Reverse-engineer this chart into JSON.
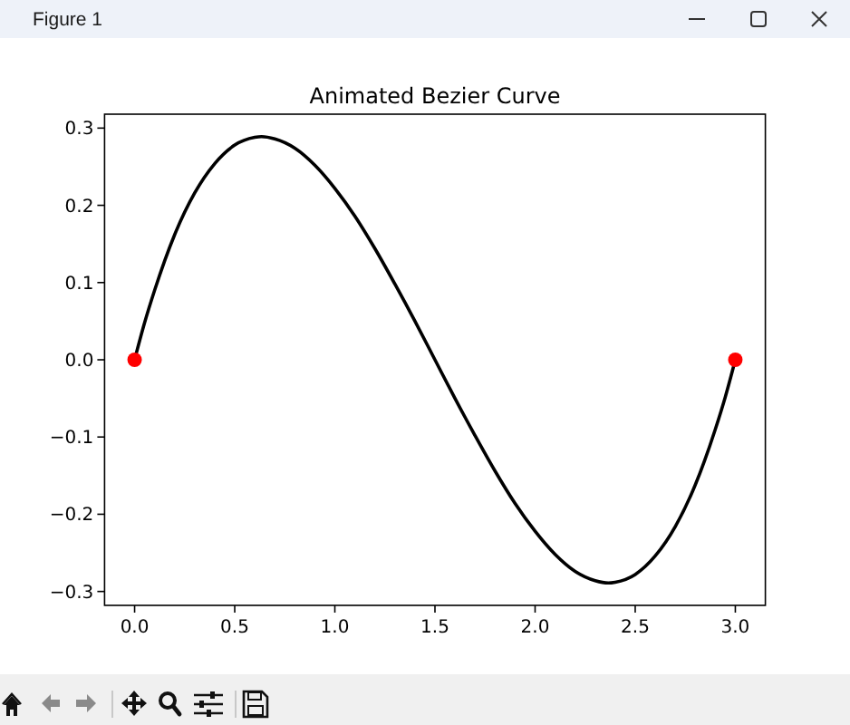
{
  "chart_data": {
    "type": "line",
    "title": "Animated Bezier Curve",
    "annotations": [
      "Figure 1"
    ],
    "xlim": [
      -0.15,
      3.15
    ],
    "ylim": [
      -0.318,
      0.318
    ],
    "xticks": [
      {
        "value": 0,
        "label": "0.0"
      },
      0.5,
      {
        "value": 1,
        "label": "1.0"
      },
      1.5,
      {
        "value": 2,
        "label": "2.0"
      },
      2.5,
      {
        "value": 3,
        "label": "3.0"
      }
    ],
    "yticks": [
      {
        "value": -0.3,
        "label": "−0.3"
      },
      {
        "value": -0.2,
        "label": "−0.2"
      },
      {
        "value": -0.1,
        "label": "−0.1"
      },
      {
        "value": 0,
        "label": "0.0"
      },
      0.1,
      0.2,
      0.3
    ],
    "series": [
      {
        "type": "line",
        "color": "#000000",
        "line_style": "solid",
        "x": [
          0,
          0.05,
          0.1,
          0.2,
          0.3,
          0.4,
          0.5,
          0.6,
          0.634,
          0.7,
          0.8,
          0.9,
          1.0,
          1.1,
          1.2,
          1.3,
          1.4,
          1.5,
          1.6,
          1.7,
          1.8,
          1.9,
          2.0,
          2.1,
          2.2,
          2.3,
          2.366,
          2.4,
          2.5,
          2.6,
          2.7,
          2.8,
          2.9,
          2.95,
          3.0
        ],
        "values": [
          0,
          0.048,
          0.09,
          0.162,
          0.216,
          0.254,
          0.278,
          0.288,
          0.289,
          0.286,
          0.274,
          0.252,
          0.222,
          0.186,
          0.144,
          0.098,
          0.05,
          0,
          -0.05,
          -0.098,
          -0.144,
          -0.186,
          -0.222,
          -0.252,
          -0.274,
          -0.286,
          -0.289,
          -0.288,
          -0.278,
          -0.254,
          -0.216,
          -0.162,
          -0.09,
          -0.048,
          0
        ]
      },
      {
        "type": "scatter",
        "color": "#ff0000",
        "marker": "circle",
        "x": [
          0,
          3
        ],
        "values": [
          0,
          0
        ]
      }
    ]
  }
}
